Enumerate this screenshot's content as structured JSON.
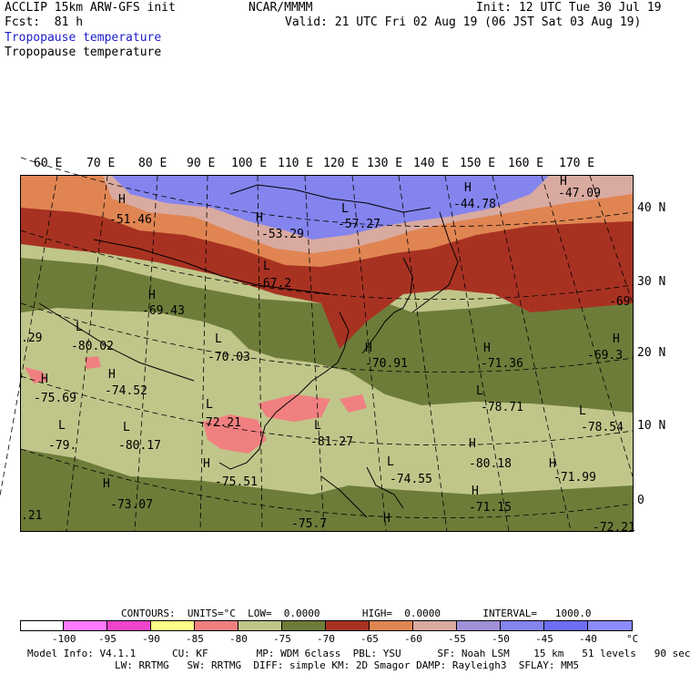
{
  "header": {
    "model": "ACCLIP 15km ARW-GFS init",
    "center": "NCAR/MMMM",
    "init": "Init: 12 UTC Tue 30 Jul 19",
    "fcst": "Fcst:  81 h",
    "valid": "Valid: 21 UTC Fri 02 Aug 19 (06 JST Sat 03 Aug 19)",
    "field1": "Tropopause temperature",
    "field2": "Tropopause temperature"
  },
  "colors": {
    "c_lt100": "#ffffff",
    "c_95": "#ff7bff",
    "c_90": "#ee44cc",
    "c_85": "#ffff88",
    "c_80": "#f08080",
    "c_75": "#c0c68a",
    "c_70": "#6e7c3a",
    "c_65": "#a83222",
    "c_60": "#e08552",
    "c_55": "#d9aaa0",
    "c_50": "#9f90d8",
    "c_45": "#8484ee",
    "c_40": "#6e6ef5",
    "c_gt40": "#8c8cff"
  },
  "lon_labels": [
    "60 E",
    "70 E",
    "80 E",
    "90 E",
    "100 E",
    "110 E",
    "120 E",
    "130 E",
    "140 E",
    "150 E",
    "160 E",
    "170 E"
  ],
  "lat_labels": [
    "40 N",
    "30 N",
    "20 N",
    "10 N",
    "0"
  ],
  "map_labels": [
    {
      "sym": "H",
      "val": "-51.46"
    },
    {
      "sym": "H",
      "val": "-53.29"
    },
    {
      "sym": "L",
      "val": "-57.27"
    },
    {
      "sym": "H",
      "val": "-44.78"
    },
    {
      "sym": "H",
      "val": "-47.09"
    },
    {
      "sym": "L",
      "val": "-67.2"
    },
    {
      "sym": "H",
      "val": "-69.43"
    },
    {
      "sym": "",
      "val": "-69"
    },
    {
      "sym": "L",
      "val": "-80.02"
    },
    {
      "sym": "",
      "val": ".29"
    },
    {
      "sym": "L",
      "val": "-70.03"
    },
    {
      "sym": "H",
      "val": "-70.91"
    },
    {
      "sym": "H",
      "val": "-71.36"
    },
    {
      "sym": "H",
      "val": "-69.3"
    },
    {
      "sym": "H",
      "val": "-75.69"
    },
    {
      "sym": "H",
      "val": "-74.52"
    },
    {
      "sym": "L",
      "val": "-78.71"
    },
    {
      "sym": "L",
      "val": "-72.21"
    },
    {
      "sym": "L",
      "val": "-78.54"
    },
    {
      "sym": "L",
      "val": "-79."
    },
    {
      "sym": "L",
      "val": "-80.17"
    },
    {
      "sym": "L",
      "val": "-81.27"
    },
    {
      "sym": "H",
      "val": "-75.51"
    },
    {
      "sym": "L",
      "val": "-74.55"
    },
    {
      "sym": "H",
      "val": "-80.18"
    },
    {
      "sym": "H",
      "val": "-71.99"
    },
    {
      "sym": "H",
      "val": "-73.07"
    },
    {
      "sym": "H",
      "val": "-71.15"
    },
    {
      "sym": "",
      "val": ".21"
    },
    {
      "sym": "",
      "val": "-75.7"
    },
    {
      "sym": "H",
      "val": ""
    },
    {
      "sym": "",
      "val": "-72.21"
    }
  ],
  "contours_line": "CONTOURS:  UNITS=°C  LOW=  0.0000       HIGH=  0.0000       INTERVAL=   1000.0",
  "colorbar_labels": [
    "-100",
    "-95",
    "-90",
    "-85",
    "-80",
    "-75",
    "-70",
    "-65",
    "-60",
    "-55",
    "-50",
    "-45",
    "-40",
    "°C"
  ],
  "info_line1": "Model Info: V4.1.1      CU: KF        MP: WDM 6class  PBL: YSU      SF: Noah LSM    15 km   51 levels   90 sec",
  "info_line2": "LW: RRTMG   SW: RRTMG  DIFF: simple KM: 2D Smagor DAMP: Rayleigh3  SFLAY: MM5"
}
